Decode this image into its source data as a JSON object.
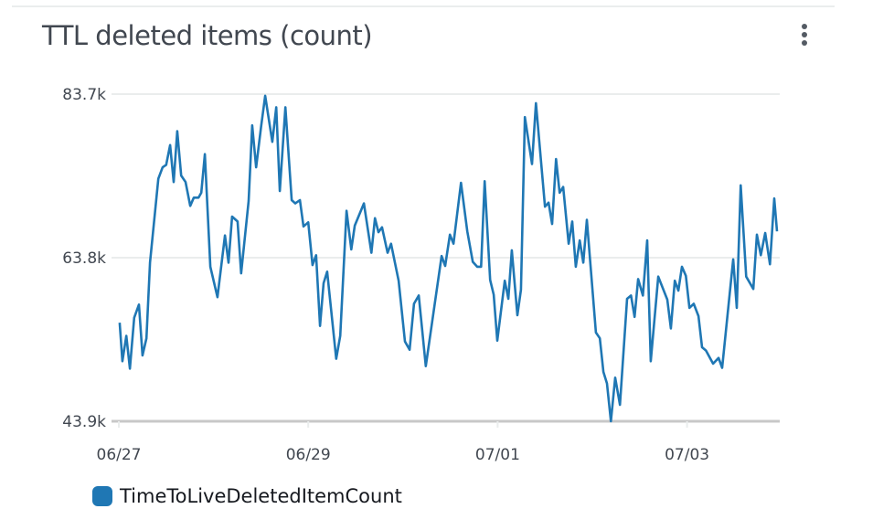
{
  "widget": {
    "title": "TTL deleted items (count)",
    "menu_icon": "vertical-ellipsis-icon"
  },
  "chart_data": {
    "type": "line",
    "title": "TTL deleted items (count)",
    "xlabel": "",
    "ylabel": "",
    "x_unit": "hours since 06/27 00:00",
    "xlim": [
      0,
      167.5
    ],
    "ylim": [
      43.9,
      83.7
    ],
    "y_unit": "thousands",
    "y_ticks": [
      {
        "value": 83.7,
        "label": "83.7k"
      },
      {
        "value": 63.8,
        "label": "63.8k"
      },
      {
        "value": 43.9,
        "label": "43.9k"
      }
    ],
    "x_ticks": [
      {
        "value": 0,
        "label": "06/27"
      },
      {
        "value": 48,
        "label": "06/29"
      },
      {
        "value": 96,
        "label": "07/01"
      },
      {
        "value": 144,
        "label": "07/03"
      }
    ],
    "grid": true,
    "legend_position": "bottom-left",
    "series": [
      {
        "name": "TimeToLiveDeletedItemCount",
        "color": "#1f77b4",
        "x": [
          0.2,
          0.9,
          1.9,
          2.8,
          3.9,
          5.1,
          6.0,
          7.0,
          7.9,
          10.0,
          11.1,
          12.0,
          13.0,
          13.9,
          14.8,
          15.8,
          16.9,
          18.1,
          19.0,
          20.2,
          20.9,
          21.8,
          23.2,
          25.0,
          26.9,
          27.8,
          28.7,
          30.1,
          31.0,
          32.9,
          33.8,
          34.8,
          36.1,
          37.1,
          38.9,
          39.9,
          40.8,
          42.2,
          43.8,
          44.7,
          45.9,
          46.8,
          48.0,
          49.1,
          50.0,
          51.0,
          51.9,
          52.8,
          55.1,
          56.1,
          57.7,
          58.9,
          59.8,
          62.1,
          64.0,
          64.9,
          65.8,
          66.7,
          68.1,
          69.0,
          70.9,
          72.5,
          73.7,
          74.8,
          76.0,
          77.8,
          81.8,
          82.7,
          83.9,
          84.8,
          86.7,
          88.3,
          89.7,
          90.8,
          91.8,
          92.7,
          94.1,
          95.0,
          95.9,
          97.8,
          98.7,
          99.6,
          101.0,
          101.9,
          102.9,
          104.7,
          105.7,
          108.0,
          108.9,
          109.8,
          110.8,
          111.7,
          112.6,
          114.0,
          114.9,
          115.8,
          116.8,
          117.7,
          118.6,
          120.9,
          121.9,
          122.8,
          123.7,
          124.7,
          125.8,
          127.0,
          128.8,
          129.8,
          130.7,
          131.6,
          132.8,
          133.9,
          134.8,
          136.7,
          139.0,
          139.9,
          140.9,
          141.8,
          142.7,
          143.7,
          144.6,
          145.7,
          146.9,
          147.8,
          148.8,
          150.6,
          152.0,
          152.9,
          155.7,
          156.6,
          157.6,
          159.0,
          160.8,
          161.7,
          162.7,
          163.8,
          165.0,
          166.1,
          166.8
        ],
        "values": [
          55.9,
          51.2,
          54.3,
          50.3,
          56.5,
          58.1,
          51.9,
          54.0,
          63.2,
          73.4,
          74.8,
          75.1,
          77.5,
          73.0,
          79.2,
          73.8,
          73.0,
          70.1,
          71.1,
          71.1,
          71.7,
          76.4,
          62.7,
          59.0,
          66.5,
          63.2,
          68.8,
          68.2,
          61.9,
          70.7,
          79.9,
          74.8,
          79.9,
          83.5,
          77.9,
          82.1,
          71.9,
          82.1,
          70.8,
          70.4,
          70.8,
          67.6,
          68.1,
          62.9,
          64.1,
          55.5,
          60.7,
          62.1,
          51.5,
          54.3,
          69.5,
          64.8,
          67.7,
          70.4,
          64.4,
          68.6,
          66.9,
          67.5,
          64.4,
          65.5,
          61.0,
          53.6,
          52.6,
          58.2,
          59.2,
          50.6,
          64.0,
          62.8,
          66.6,
          65.5,
          72.9,
          67.0,
          63.3,
          62.7,
          62.7,
          73.1,
          61.1,
          59.3,
          53.7,
          61.0,
          58.8,
          64.7,
          56.8,
          59.9,
          80.9,
          75.2,
          82.6,
          70.0,
          70.5,
          67.9,
          75.8,
          71.7,
          72.4,
          65.5,
          68.2,
          62.7,
          65.9,
          63.2,
          68.4,
          54.7,
          54.0,
          49.9,
          48.5,
          43.9,
          49.2,
          45.9,
          58.8,
          59.2,
          56.6,
          61.2,
          59.2,
          65.9,
          51.2,
          61.5,
          58.7,
          55.2,
          61.0,
          59.8,
          62.7,
          61.6,
          57.7,
          58.2,
          56.7,
          52.9,
          52.5,
          50.9,
          51.6,
          50.4,
          63.6,
          57.7,
          72.6,
          61.5,
          60.0,
          66.6,
          64.1,
          66.8,
          63.0,
          71.0,
          67.0
        ]
      }
    ]
  }
}
